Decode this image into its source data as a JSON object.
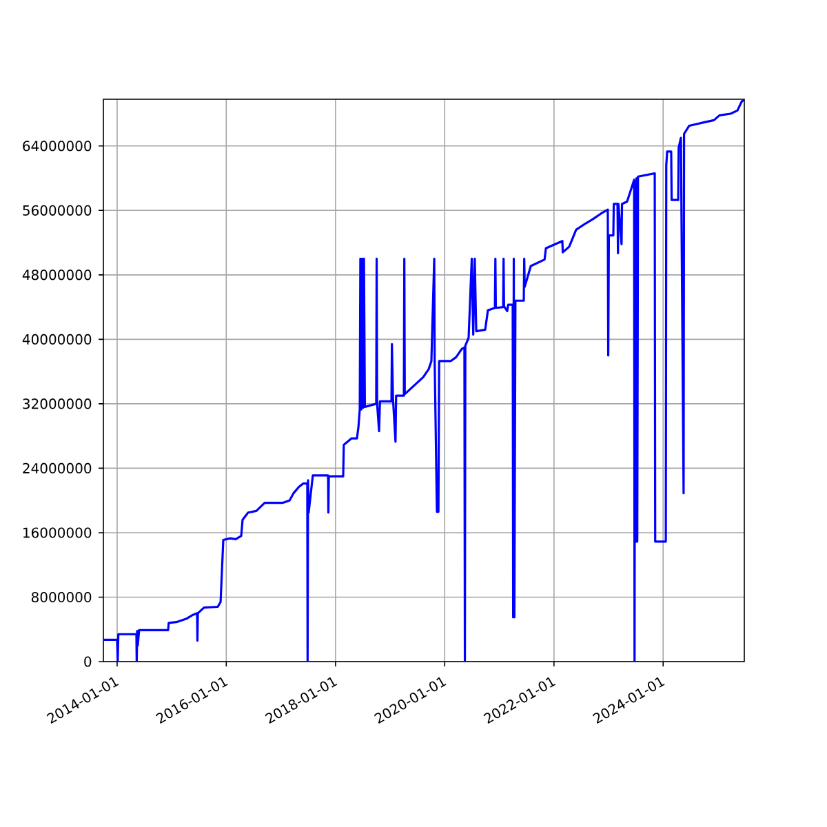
{
  "chart_data": {
    "type": "line",
    "grid": true,
    "xlim": [
      "2013-10-01",
      "2025-06-27"
    ],
    "ylim": [
      0,
      69800000
    ],
    "xticks": [
      "2014-01-01",
      "2016-01-01",
      "2018-01-01",
      "2020-01-01",
      "2022-01-01",
      "2024-01-01"
    ],
    "yticks": [
      0,
      8000000,
      16000000,
      24000000,
      32000000,
      40000000,
      48000000,
      56000000,
      64000000
    ],
    "x": [
      "2013-10-01",
      "2014-01-01",
      "2014-01-05",
      "2014-01-09",
      "2014-05-10",
      "2014-05-12",
      "2014-05-15",
      "2014-05-19",
      "2014-05-28",
      "2014-12-08",
      "2014-12-12",
      "2015-02-01",
      "2015-04-07",
      "2015-05-23",
      "2015-06-20",
      "2015-06-22",
      "2015-06-25",
      "2015-08-05",
      "2015-11-05",
      "2015-11-24",
      "2015-12-12",
      "2016-01-27",
      "2016-03-04",
      "2016-04-10",
      "2016-04-19",
      "2016-05-26",
      "2016-07-20",
      "2016-09-14",
      "2017-01-11",
      "2017-02-27",
      "2017-03-26",
      "2017-05-02",
      "2017-05-30",
      "2017-06-26",
      "2017-06-28",
      "2017-07-01",
      "2017-07-05",
      "2017-08-02",
      "2017-11-12",
      "2017-11-14",
      "2017-11-17",
      "2018-02-21",
      "2018-02-25",
      "2018-04-17",
      "2018-05-24",
      "2018-06-03",
      "2018-06-12",
      "2018-06-16",
      "2018-06-22",
      "2018-06-28",
      "2018-07-04",
      "2018-07-10",
      "2018-07-16",
      "2018-09-30",
      "2018-10-03",
      "2018-10-06",
      "2018-10-19",
      "2018-10-25",
      "2019-01-10",
      "2019-01-13",
      "2019-01-20",
      "2019-02-06",
      "2019-02-10",
      "2019-04-03",
      "2019-04-06",
      "2019-04-09",
      "2019-08-10",
      "2019-09-16",
      "2019-10-04",
      "2019-10-23",
      "2019-10-26",
      "2019-11-10",
      "2019-11-20",
      "2019-11-25",
      "2020-02-10",
      "2020-03-18",
      "2020-04-24",
      "2020-05-12",
      "2020-05-15",
      "2020-05-18",
      "2020-06-09",
      "2020-06-30",
      "2020-07-10",
      "2020-07-20",
      "2020-07-30",
      "2020-09-28",
      "2020-10-16",
      "2020-12-02",
      "2020-12-05",
      "2020-12-08",
      "2021-01-26",
      "2021-01-29",
      "2021-02-01",
      "2021-02-22",
      "2021-03-01",
      "2021-03-31",
      "2021-04-03",
      "2021-04-07",
      "2021-04-11",
      "2021-04-18",
      "2021-06-13",
      "2021-06-16",
      "2021-06-19",
      "2021-07-30",
      "2021-10-30",
      "2021-11-08",
      "2022-02-26",
      "2022-03-01",
      "2022-04-13",
      "2022-05-29",
      "2022-08-02",
      "2022-09-17",
      "2022-11-11",
      "2022-12-27",
      "2022-12-30",
      "2023-01-03",
      "2023-02-02",
      "2023-02-05",
      "2023-03-02",
      "2023-03-05",
      "2023-03-08",
      "2023-03-29",
      "2023-04-01",
      "2023-05-05",
      "2023-06-21",
      "2023-06-24",
      "2023-06-27",
      "2023-07-02",
      "2023-07-07",
      "2023-07-12",
      "2023-07-17",
      "2023-11-06",
      "2023-11-09",
      "2024-01-19",
      "2024-01-22",
      "2024-01-28",
      "2024-02-24",
      "2024-02-27",
      "2024-04-11",
      "2024-04-14",
      "2024-04-29",
      "2024-05-17",
      "2024-05-20",
      "2024-06-23",
      "2024-09-23",
      "2024-12-06",
      "2025-01-12",
      "2025-03-27",
      "2025-05-12",
      "2025-06-09",
      "2025-06-27"
    ],
    "series": [
      {
        "color": "#0000ff",
        "values": [
          2700000,
          2700000,
          0,
          3400000,
          3400000,
          0,
          3800000,
          2000000,
          3900000,
          3900000,
          4800000,
          4900000,
          5300000,
          5800000,
          6000000,
          2600000,
          6000000,
          6700000,
          6800000,
          7400000,
          15100000,
          15300000,
          15200000,
          15600000,
          17600000,
          18500000,
          18700000,
          19700000,
          19700000,
          20000000,
          20900000,
          21700000,
          22100000,
          22100000,
          0,
          22500000,
          18500000,
          23100000,
          23100000,
          18500000,
          23000000,
          23000000,
          26900000,
          27700000,
          27700000,
          29100000,
          31300000,
          50000000,
          31300000,
          50000000,
          31500000,
          50000000,
          31600000,
          32000000,
          50000000,
          32000000,
          28600000,
          32300000,
          32300000,
          39400000,
          32700000,
          27300000,
          33000000,
          33000000,
          50000000,
          33200000,
          35300000,
          36300000,
          37300000,
          50000000,
          37300000,
          18600000,
          18600000,
          37300000,
          37300000,
          37800000,
          38800000,
          39000000,
          0,
          39200000,
          40200000,
          50000000,
          40600000,
          50000000,
          41000000,
          41200000,
          43600000,
          43900000,
          50000000,
          43900000,
          44000000,
          50000000,
          44100000,
          43500000,
          44300000,
          44300000,
          5500000,
          50000000,
          5500000,
          44800000,
          44800000,
          50000000,
          46500000,
          49100000,
          49900000,
          51300000,
          52200000,
          50800000,
          51500000,
          53600000,
          54400000,
          54900000,
          55600000,
          56100000,
          38000000,
          52900000,
          52900000,
          56800000,
          56800000,
          50700000,
          56800000,
          51800000,
          56800000,
          57100000,
          59800000,
          0,
          59500000,
          14900000,
          60000000,
          14900000,
          60200000,
          60600000,
          14900000,
          14900000,
          61600000,
          63300000,
          63300000,
          57300000,
          57300000,
          63800000,
          65000000,
          20900000,
          65500000,
          66500000,
          66900000,
          67200000,
          67800000,
          68000000,
          68400000,
          69500000,
          69800000
        ]
      }
    ]
  }
}
